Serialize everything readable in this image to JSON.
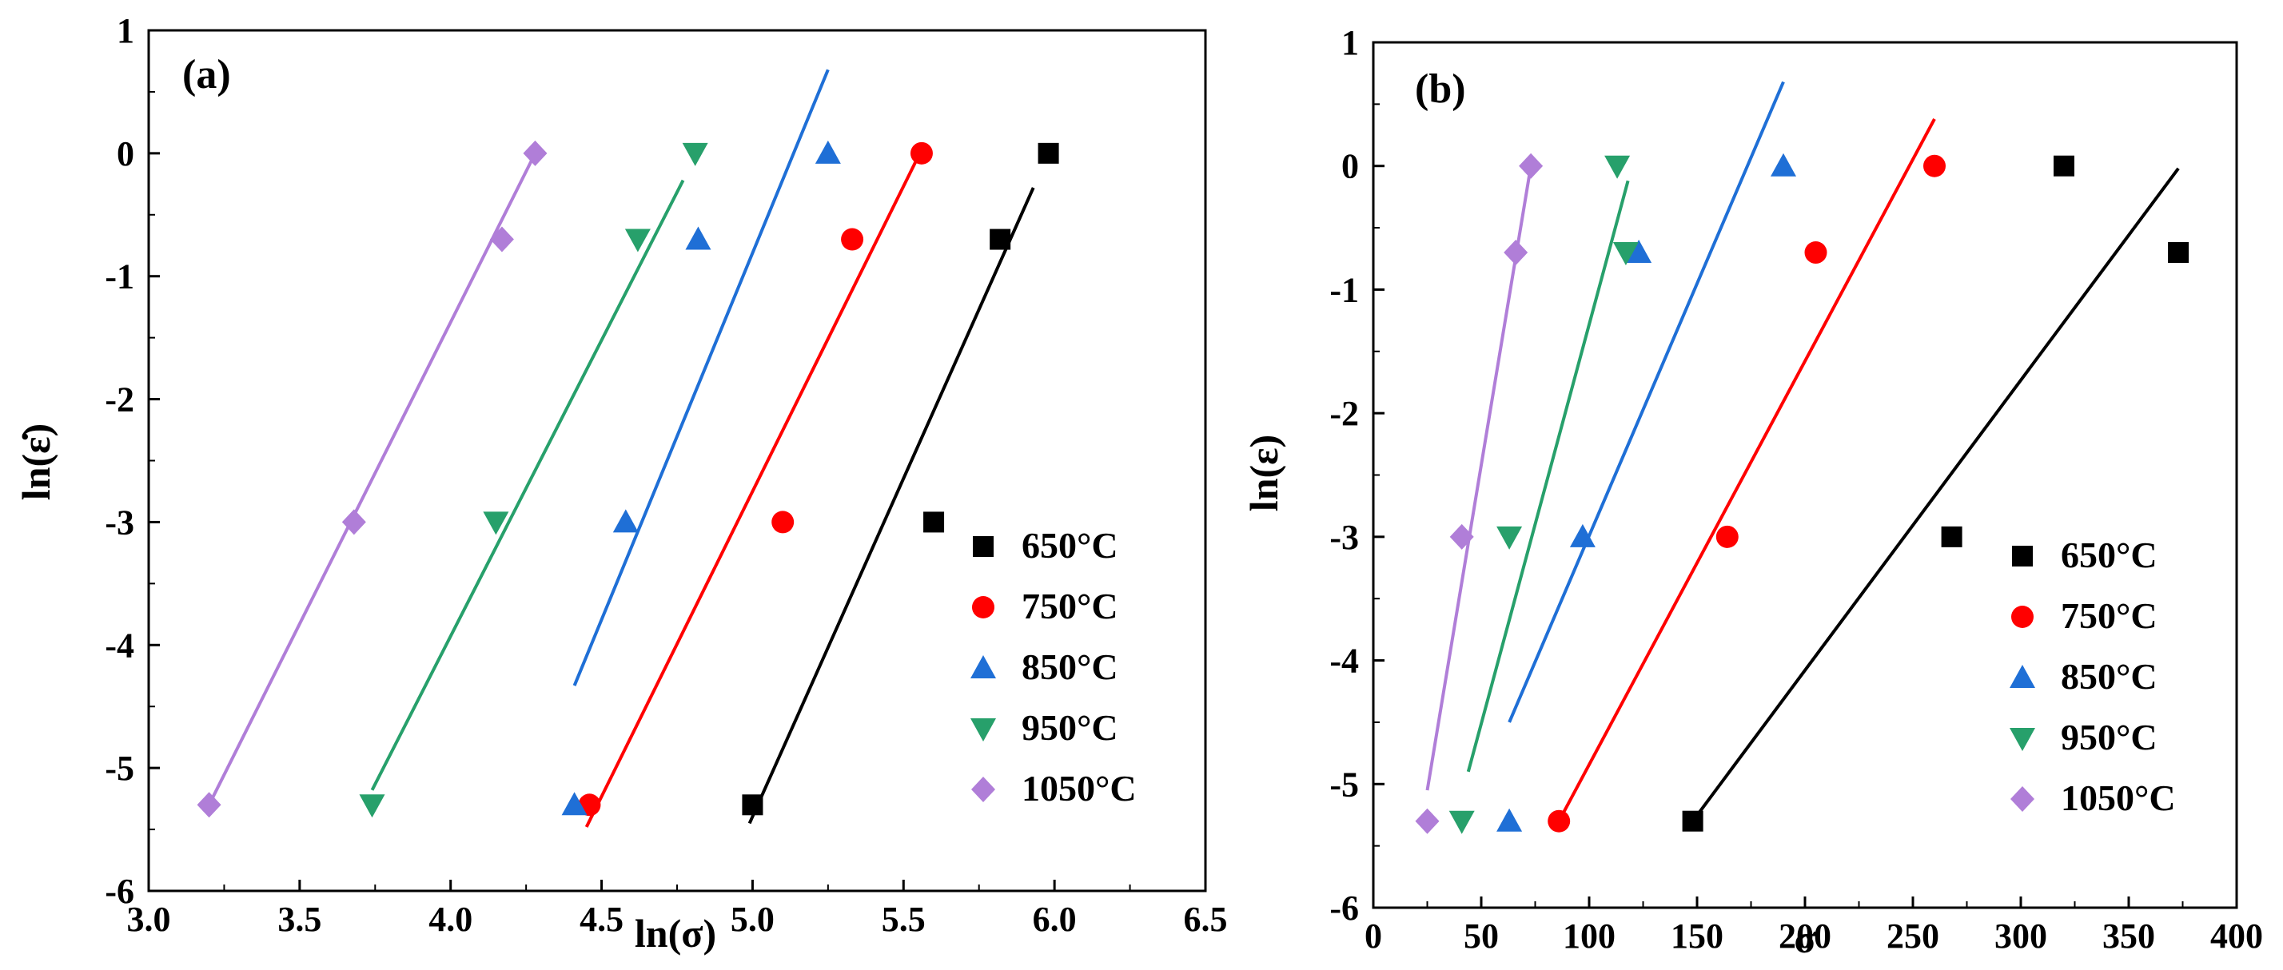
{
  "chart_data": [
    {
      "type": "scatter",
      "panel_label": "(a)",
      "xlabel": "ln(σ)",
      "ylabel": "ln(ε̇)",
      "xlim": [
        3.0,
        6.5
      ],
      "ylim": [
        -6,
        1
      ],
      "xticks": [
        3.0,
        3.5,
        4.0,
        4.5,
        5.0,
        5.5,
        6.0,
        6.5
      ],
      "xtick_labels": [
        "3.0",
        "3.5",
        "4.0",
        "4.5",
        "5.0",
        "5.5",
        "6.0",
        "6.5"
      ],
      "yticks": [
        -6,
        -5,
        -4,
        -3,
        -2,
        -1,
        0,
        1
      ],
      "ytick_labels": [
        "-6",
        "-5",
        "-4",
        "-3",
        "-2",
        "-1",
        "0",
        "1"
      ],
      "legend_position": "bottom-right",
      "grid": false,
      "series": [
        {
          "name": "650°C",
          "color": "#000000",
          "marker": "square",
          "x": [
            5.0,
            5.6,
            5.82,
            5.98
          ],
          "y": [
            -5.3,
            -3.0,
            -0.7,
            0.0
          ],
          "fit": [
            [
              4.99,
              -5.45
            ],
            [
              5.93,
              -0.28
            ]
          ]
        },
        {
          "name": "750°C",
          "color": "#ff0000",
          "marker": "circle",
          "x": [
            4.46,
            5.1,
            5.33,
            5.56
          ],
          "y": [
            -5.3,
            -3.0,
            -0.7,
            0.0
          ],
          "fit": [
            [
              4.45,
              -5.48
            ],
            [
              5.55,
              -0.02
            ]
          ]
        },
        {
          "name": "850°C",
          "color": "#1f6fd6",
          "marker": "triangle-up",
          "x": [
            4.41,
            4.58,
            4.82,
            5.25
          ],
          "y": [
            -5.3,
            -3.0,
            -0.7,
            0.0
          ],
          "fit": [
            [
              4.41,
              -4.33
            ],
            [
              5.25,
              0.68
            ]
          ]
        },
        {
          "name": "950°C",
          "color": "#27a06b",
          "marker": "triangle-down",
          "x": [
            3.74,
            4.15,
            4.62,
            4.81
          ],
          "y": [
            -5.3,
            -3.0,
            -0.7,
            0.0
          ],
          "fit": [
            [
              3.74,
              -5.18
            ],
            [
              4.77,
              -0.22
            ]
          ]
        },
        {
          "name": "1050°C",
          "color": "#b07ed8",
          "marker": "diamond",
          "x": [
            3.2,
            3.68,
            4.17,
            4.28
          ],
          "y": [
            -5.3,
            -3.0,
            -0.7,
            0.0
          ],
          "fit": [
            [
              3.2,
              -5.3
            ],
            [
              4.28,
              0.0
            ]
          ]
        }
      ]
    },
    {
      "type": "scatter",
      "panel_label": "(b)",
      "xlabel": "σ",
      "ylabel": "ln(ε)",
      "xlim": [
        0,
        400
      ],
      "ylim": [
        -6,
        1
      ],
      "xticks": [
        0,
        50,
        100,
        150,
        200,
        250,
        300,
        350,
        400
      ],
      "xtick_labels": [
        "0",
        "50",
        "100",
        "150",
        "200",
        "250",
        "300",
        "350",
        "400"
      ],
      "yticks": [
        -6,
        -5,
        -4,
        -3,
        -2,
        -1,
        0,
        1
      ],
      "ytick_labels": [
        "-6",
        "-5",
        "-4",
        "-3",
        "-2",
        "-1",
        "0",
        "1"
      ],
      "legend_position": "bottom-right",
      "grid": false,
      "series": [
        {
          "name": "650°C",
          "color": "#000000",
          "marker": "square",
          "x": [
            148,
            268,
            320,
            373
          ],
          "y": [
            -5.3,
            -3.0,
            0.0,
            -0.7
          ],
          "fit": [
            [
              148,
              -5.3
            ],
            [
              373,
              -0.02
            ]
          ]
        },
        {
          "name": "750°C",
          "color": "#ff0000",
          "marker": "circle",
          "x": [
            86,
            164,
            205,
            260
          ],
          "y": [
            -5.3,
            -3.0,
            -0.7,
            0.0
          ],
          "fit": [
            [
              86,
              -5.3
            ],
            [
              260,
              0.38
            ]
          ]
        },
        {
          "name": "850°C",
          "color": "#1f6fd6",
          "marker": "triangle-up",
          "x": [
            63,
            97,
            123,
            190
          ],
          "y": [
            -5.3,
            -3.0,
            -0.7,
            0.0
          ],
          "fit": [
            [
              63,
              -4.5
            ],
            [
              190,
              0.68
            ]
          ]
        },
        {
          "name": "950°C",
          "color": "#27a06b",
          "marker": "triangle-down",
          "x": [
            41,
            63,
            117,
            113
          ],
          "y": [
            -5.3,
            -3.0,
            -0.7,
            0.0
          ],
          "fit": [
            [
              44,
              -4.9
            ],
            [
              118,
              -0.12
            ]
          ]
        },
        {
          "name": "1050°C",
          "color": "#b07ed8",
          "marker": "diamond",
          "x": [
            25,
            41,
            66,
            73
          ],
          "y": [
            -5.3,
            -3.0,
            -0.7,
            0.0
          ],
          "fit": [
            [
              25,
              -5.05
            ],
            [
              73,
              0.0
            ]
          ]
        }
      ]
    }
  ]
}
